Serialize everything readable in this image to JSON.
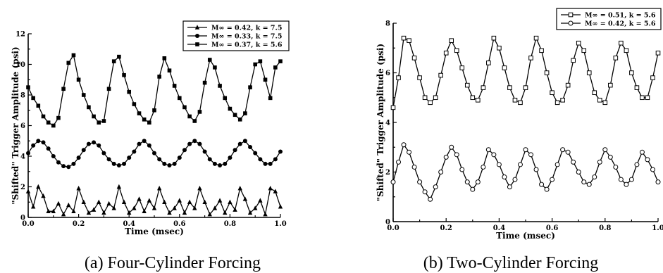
{
  "chart_data": [
    {
      "type": "line",
      "caption": "(a) Four-Cylinder Forcing",
      "xlabel": "Time (msec)",
      "ylabel": "\"Shifted\" Trigger Amplitude (psi)",
      "xlim": [
        0,
        1.0
      ],
      "ylim": [
        0,
        12
      ],
      "xticks": [
        "0.0",
        "0.2",
        "0.4",
        "0.6",
        "0.8",
        "1.0"
      ],
      "yticks": [
        "0",
        "2",
        "4",
        "6",
        "8",
        "10",
        "12"
      ],
      "legend_position": "top-right",
      "series": [
        {
          "name": "M∞ = 0.42, k = 7.5",
          "marker": "triangle",
          "x": [
            0.0,
            0.02,
            0.04,
            0.06,
            0.08,
            0.1,
            0.12,
            0.14,
            0.16,
            0.18,
            0.2,
            0.22,
            0.24,
            0.26,
            0.28,
            0.3,
            0.32,
            0.34,
            0.36,
            0.38,
            0.4,
            0.42,
            0.44,
            0.46,
            0.48,
            0.5,
            0.52,
            0.54,
            0.56,
            0.58,
            0.6,
            0.62,
            0.64,
            0.66,
            0.68,
            0.7,
            0.72,
            0.74,
            0.76,
            0.78,
            0.8,
            0.82,
            0.84,
            0.86,
            0.88,
            0.9,
            0.92,
            0.94,
            0.96,
            0.98,
            1.0
          ],
          "y": [
            1.7,
            0.7,
            2.0,
            1.4,
            0.4,
            0.4,
            0.9,
            0.2,
            0.8,
            0.4,
            1.9,
            1.0,
            0.3,
            0.5,
            1.0,
            0.3,
            0.9,
            0.6,
            2.0,
            1.0,
            0.3,
            0.6,
            1.2,
            0.4,
            1.1,
            0.6,
            1.9,
            1.0,
            0.3,
            0.6,
            1.1,
            0.3,
            1.0,
            0.6,
            1.9,
            1.0,
            0.2,
            0.6,
            1.1,
            0.3,
            1.0,
            0.5,
            1.9,
            1.2,
            0.3,
            0.6,
            1.1,
            0.2,
            1.9,
            1.7,
            0.7
          ]
        },
        {
          "name": "M∞ = 0.33, k = 7.5",
          "marker": "circle",
          "x": [
            0.0,
            0.02,
            0.04,
            0.06,
            0.08,
            0.1,
            0.12,
            0.14,
            0.16,
            0.18,
            0.2,
            0.22,
            0.24,
            0.26,
            0.28,
            0.3,
            0.32,
            0.34,
            0.36,
            0.38,
            0.4,
            0.42,
            0.44,
            0.46,
            0.48,
            0.5,
            0.52,
            0.54,
            0.56,
            0.58,
            0.6,
            0.62,
            0.64,
            0.66,
            0.68,
            0.7,
            0.72,
            0.74,
            0.76,
            0.78,
            0.8,
            0.82,
            0.84,
            0.86,
            0.88,
            0.9,
            0.92,
            0.94,
            0.96,
            0.98,
            1.0
          ],
          "y": [
            4.2,
            4.7,
            5.0,
            4.9,
            4.5,
            4.0,
            3.6,
            3.35,
            3.3,
            3.5,
            3.9,
            4.4,
            4.8,
            4.9,
            4.7,
            4.2,
            3.8,
            3.5,
            3.4,
            3.5,
            3.9,
            4.3,
            4.8,
            5.0,
            4.7,
            4.2,
            3.8,
            3.5,
            3.4,
            3.5,
            3.9,
            4.4,
            4.8,
            5.0,
            4.8,
            4.3,
            3.8,
            3.5,
            3.4,
            3.5,
            3.9,
            4.4,
            4.8,
            5.0,
            4.6,
            4.2,
            3.8,
            3.5,
            3.5,
            3.8,
            4.3
          ]
        },
        {
          "name": "M∞ = 0.37, k = 5.6",
          "marker": "square",
          "x": [
            0.0,
            0.02,
            0.04,
            0.06,
            0.08,
            0.1,
            0.12,
            0.14,
            0.16,
            0.18,
            0.2,
            0.22,
            0.24,
            0.26,
            0.28,
            0.3,
            0.32,
            0.34,
            0.36,
            0.38,
            0.4,
            0.42,
            0.44,
            0.46,
            0.48,
            0.5,
            0.52,
            0.54,
            0.56,
            0.58,
            0.6,
            0.62,
            0.64,
            0.66,
            0.68,
            0.7,
            0.72,
            0.74,
            0.76,
            0.78,
            0.8,
            0.82,
            0.84,
            0.86,
            0.88,
            0.9,
            0.92,
            0.94,
            0.96,
            0.98,
            1.0
          ],
          "y": [
            8.5,
            7.8,
            7.3,
            6.6,
            6.2,
            6.0,
            6.5,
            8.4,
            10.1,
            10.6,
            9.0,
            8.0,
            7.2,
            6.6,
            6.2,
            6.3,
            8.4,
            10.2,
            10.5,
            9.3,
            8.2,
            7.4,
            6.8,
            6.4,
            6.2,
            7.0,
            9.2,
            10.4,
            9.6,
            8.6,
            7.8,
            7.2,
            6.6,
            6.3,
            6.9,
            8.8,
            10.3,
            9.8,
            8.6,
            7.8,
            7.1,
            6.7,
            6.4,
            6.8,
            8.5,
            10.0,
            10.2,
            9.0,
            7.8,
            9.8,
            10.2
          ]
        }
      ]
    },
    {
      "type": "line",
      "caption": "(b) Two-Cylinder Forcing",
      "xlabel": "Time (msec)",
      "ylabel": "\"Shifted\" Trigger Amplitude (psi)",
      "xlim": [
        0,
        1.0
      ],
      "ylim": [
        0,
        8
      ],
      "xticks": [
        "0.0",
        "0.2",
        "0.4",
        "0.6",
        "0.8",
        "1.0"
      ],
      "yticks": [
        "0",
        "2",
        "4",
        "6",
        "8"
      ],
      "legend_position": "top-right",
      "series": [
        {
          "name": "M∞ = 0.51, k = 5.6",
          "marker": "open-square",
          "x": [
            0.0,
            0.02,
            0.04,
            0.06,
            0.08,
            0.1,
            0.12,
            0.14,
            0.16,
            0.18,
            0.2,
            0.22,
            0.24,
            0.26,
            0.28,
            0.3,
            0.32,
            0.34,
            0.36,
            0.38,
            0.4,
            0.42,
            0.44,
            0.46,
            0.48,
            0.5,
            0.52,
            0.54,
            0.56,
            0.58,
            0.6,
            0.62,
            0.64,
            0.66,
            0.68,
            0.7,
            0.72,
            0.74,
            0.76,
            0.78,
            0.8,
            0.82,
            0.84,
            0.86,
            0.88,
            0.9,
            0.92,
            0.94,
            0.96,
            0.98,
            1.0
          ],
          "y": [
            4.6,
            5.8,
            7.4,
            7.3,
            6.6,
            5.8,
            5.0,
            4.8,
            5.0,
            5.9,
            6.8,
            7.3,
            6.9,
            6.2,
            5.5,
            5.0,
            4.9,
            5.4,
            6.4,
            7.4,
            7.0,
            6.2,
            5.4,
            4.9,
            4.8,
            5.4,
            6.6,
            7.4,
            6.9,
            6.0,
            5.2,
            4.8,
            4.9,
            5.5,
            6.5,
            7.2,
            6.9,
            6.0,
            5.2,
            4.9,
            4.8,
            5.5,
            6.6,
            7.2,
            6.9,
            6.0,
            5.4,
            5.0,
            5.0,
            5.8,
            6.8
          ]
        },
        {
          "name": "M∞ = 0.42, k = 5.6",
          "marker": "open-circle",
          "x": [
            0.0,
            0.02,
            0.04,
            0.06,
            0.08,
            0.1,
            0.12,
            0.14,
            0.16,
            0.18,
            0.2,
            0.22,
            0.24,
            0.26,
            0.28,
            0.3,
            0.32,
            0.34,
            0.36,
            0.38,
            0.4,
            0.42,
            0.44,
            0.46,
            0.48,
            0.5,
            0.52,
            0.54,
            0.56,
            0.58,
            0.6,
            0.62,
            0.64,
            0.66,
            0.68,
            0.7,
            0.72,
            0.74,
            0.76,
            0.78,
            0.8,
            0.82,
            0.84,
            0.86,
            0.88,
            0.9,
            0.92,
            0.94,
            0.96,
            0.98,
            1.0
          ],
          "y": [
            1.6,
            2.4,
            3.1,
            2.8,
            2.2,
            1.6,
            1.2,
            0.9,
            1.4,
            2.0,
            2.6,
            3.0,
            2.7,
            2.1,
            1.6,
            1.3,
            1.6,
            2.2,
            2.9,
            2.7,
            2.3,
            1.8,
            1.4,
            1.7,
            2.3,
            2.9,
            2.7,
            2.1,
            1.5,
            1.3,
            1.7,
            2.3,
            2.9,
            2.8,
            2.4,
            2.0,
            1.6,
            1.5,
            1.8,
            2.4,
            2.9,
            2.6,
            2.2,
            1.7,
            1.5,
            1.7,
            2.3,
            2.8,
            2.5,
            2.1,
            1.6
          ]
        }
      ]
    }
  ]
}
